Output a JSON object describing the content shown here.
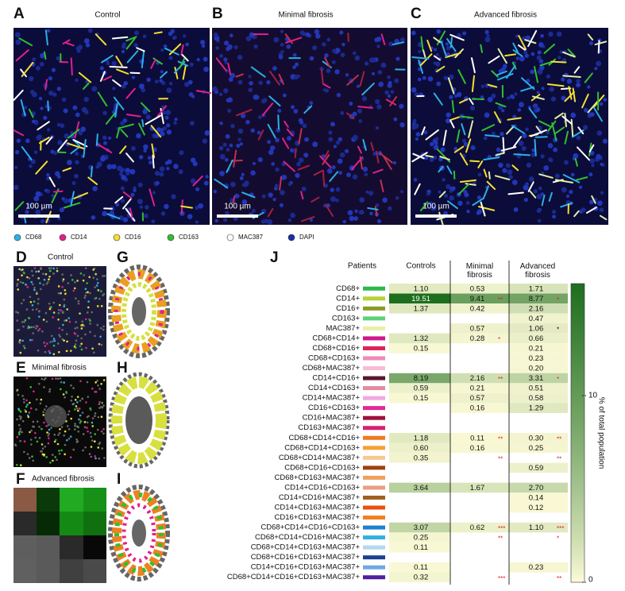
{
  "panels_top": [
    {
      "letter": "A",
      "title": "Control",
      "scale_bar": "100 µm"
    },
    {
      "letter": "B",
      "title": "Minimal fibrosis",
      "scale_bar": "100 µm"
    },
    {
      "letter": "C",
      "title": "Advanced fibrosis",
      "scale_bar": "100 µm"
    }
  ],
  "legend": [
    {
      "label": "CD68",
      "color": "#2ab0e6"
    },
    {
      "label": "CD14",
      "color": "#e0208c"
    },
    {
      "label": "CD16",
      "color": "#f4e030"
    },
    {
      "label": "CD163",
      "color": "#30c030"
    },
    {
      "label": "MAC387",
      "color": "#ffffff"
    },
    {
      "label": "DAPI",
      "color": "#1a2ea8"
    }
  ],
  "panels_left": [
    {
      "letter": "D",
      "title": "Control"
    },
    {
      "letter": "E",
      "title": "Minimal fibrosis"
    },
    {
      "letter": "F",
      "title": "Advanced fibrosis"
    }
  ],
  "panels_ring": [
    {
      "letter": "G"
    },
    {
      "letter": "H"
    },
    {
      "letter": "I"
    }
  ],
  "table": {
    "letter": "J",
    "headers": [
      "Patients",
      "Controls",
      "Minimal fibrosis",
      "Advanced fibrosis"
    ],
    "sig_color": "#e02020",
    "rows": [
      {
        "label": "CD68+",
        "color": "#2db84b",
        "values": [
          "1.10",
          "0.53",
          "1.71"
        ],
        "sig": [
          null,
          null,
          null
        ]
      },
      {
        "label": "CD14+",
        "color": "#b5d334",
        "values": [
          "19.51",
          "9.41",
          "8.77"
        ],
        "sig": [
          null,
          "**",
          "*"
        ]
      },
      {
        "label": "CD16+",
        "color": "#8a9a2a",
        "values": [
          "1.37",
          "0.42",
          "2.16"
        ],
        "sig": [
          null,
          null,
          null
        ]
      },
      {
        "label": "CD163+",
        "color": "#5fd07a",
        "values": [
          null,
          null,
          "0.47"
        ],
        "sig": [
          null,
          null,
          null
        ]
      },
      {
        "label": "MAC387+",
        "color": "#e8f0a8",
        "values": [
          null,
          "0.57",
          "1.06"
        ],
        "sig": [
          null,
          null,
          "*"
        ],
        "sig_color": "#000000"
      },
      {
        "label": "CD68+CD14+",
        "color": "#d1168c",
        "values": [
          "1.32",
          "0.28",
          "0.66"
        ],
        "sig": [
          null,
          "*",
          null
        ]
      },
      {
        "label": "CD68+CD16+",
        "color": "#e0215a",
        "values": [
          "0.15",
          null,
          "0.21"
        ],
        "sig": [
          null,
          null,
          null
        ]
      },
      {
        "label": "CD68+CD163+",
        "color": "#f08ab8",
        "values": [
          null,
          null,
          "0.23"
        ],
        "sig": [
          null,
          null,
          null
        ]
      },
      {
        "label": "CD68+MAC387+",
        "color": "#f6bcd8",
        "values": [
          null,
          null,
          "0.20"
        ],
        "sig": [
          null,
          null,
          null
        ]
      },
      {
        "label": "CD14+CD16+",
        "color": "#5a1530",
        "values": [
          "8.19",
          "2.16",
          "3.31"
        ],
        "sig": [
          null,
          "**",
          "*"
        ]
      },
      {
        "label": "CD14+CD163+",
        "color": "#e28aa0",
        "values": [
          "0.59",
          "0.21",
          "0.51"
        ],
        "sig": [
          null,
          null,
          null
        ]
      },
      {
        "label": "CD14+MAC387+",
        "color": "#f0a8e0",
        "values": [
          "0.15",
          "0.57",
          "0.58"
        ],
        "sig": [
          null,
          null,
          null
        ]
      },
      {
        "label": "CD16+CD163+",
        "color": "#e0289a",
        "values": [
          null,
          "0.16",
          "1.29"
        ],
        "sig": [
          null,
          null,
          null
        ]
      },
      {
        "label": "CD16+MAC387+",
        "color": "#a0103a",
        "values": [
          null,
          null,
          null
        ],
        "sig": [
          null,
          null,
          null
        ]
      },
      {
        "label": "CD163+MAC387+",
        "color": "#d82070",
        "values": [
          null,
          null,
          null
        ],
        "sig": [
          null,
          null,
          null
        ]
      },
      {
        "label": "CD68+CD14+CD16+",
        "color": "#f07820",
        "values": [
          "1.18",
          "0.11",
          "0.30"
        ],
        "sig": [
          null,
          "**",
          "**"
        ]
      },
      {
        "label": "CD68+CD14+CD163+",
        "color": "#f5a030",
        "values": [
          "0.60",
          "0.16",
          "0.25"
        ],
        "sig": [
          null,
          null,
          null
        ]
      },
      {
        "label": "CD68+CD14+MAC387+",
        "color": "#f8c890",
        "values": [
          "0.35",
          null,
          null
        ],
        "sig": [
          null,
          "**",
          "**"
        ]
      },
      {
        "label": "CD68+CD16+CD163+",
        "color": "#a04010",
        "values": [
          null,
          null,
          "0.59"
        ],
        "sig": [
          null,
          null,
          null
        ]
      },
      {
        "label": "CD68+CD163+MAC387+",
        "color": "#f0a060",
        "values": [
          null,
          null,
          null
        ],
        "sig": [
          null,
          null,
          null
        ]
      },
      {
        "label": "CD14+CD16+CD163+",
        "color": "#e8a080",
        "values": [
          "3.64",
          "1.67",
          "2.70"
        ],
        "sig": [
          null,
          null,
          null
        ]
      },
      {
        "label": "CD14+CD16+MAC387+",
        "color": "#a06020",
        "values": [
          null,
          null,
          "0.14"
        ],
        "sig": [
          null,
          null,
          null
        ]
      },
      {
        "label": "CD14+CD163+MAC387+",
        "color": "#e85010",
        "values": [
          null,
          null,
          "0.12"
        ],
        "sig": [
          null,
          null,
          null
        ]
      },
      {
        "label": "CD16+CD163+MAC387+",
        "color": "#f08020",
        "values": [
          null,
          null,
          null
        ],
        "sig": [
          null,
          null,
          null
        ]
      },
      {
        "label": "CD68+CD14+CD16+CD163+",
        "color": "#2080d0",
        "values": [
          "3.07",
          "0.62",
          "1.10"
        ],
        "sig": [
          null,
          "***",
          "***"
        ]
      },
      {
        "label": "CD68+CD14+CD16+MAC387+",
        "color": "#30b0e0",
        "values": [
          "0.25",
          null,
          null
        ],
        "sig": [
          null,
          "**",
          "*"
        ]
      },
      {
        "label": "CD68+CD14+CD163+MAC387+",
        "color": "#b0d8f0",
        "values": [
          "0.11",
          null,
          null
        ],
        "sig": [
          null,
          null,
          null
        ]
      },
      {
        "label": "CD68+CD16+CD163+MAC387+",
        "color": "#1a4090",
        "values": [
          null,
          null,
          null
        ],
        "sig": [
          null,
          null,
          null
        ]
      },
      {
        "label": "CD14+CD16+CD163+MAC387+",
        "color": "#70a8e0",
        "values": [
          "0.11",
          null,
          "0.23"
        ],
        "sig": [
          null,
          null,
          null
        ]
      },
      {
        "label": "CD68+CD14+CD16+CD163+MAC387+",
        "color": "#5020a0",
        "values": [
          "0.32",
          null,
          null
        ],
        "sig": [
          null,
          "***",
          "**"
        ]
      }
    ],
    "colorbar": {
      "label": "% of total population",
      "lim": [
        0,
        16
      ],
      "ticks": [
        0,
        10
      ],
      "low_color": "#fdfbd8",
      "high_color": "#1e6e1e"
    }
  }
}
